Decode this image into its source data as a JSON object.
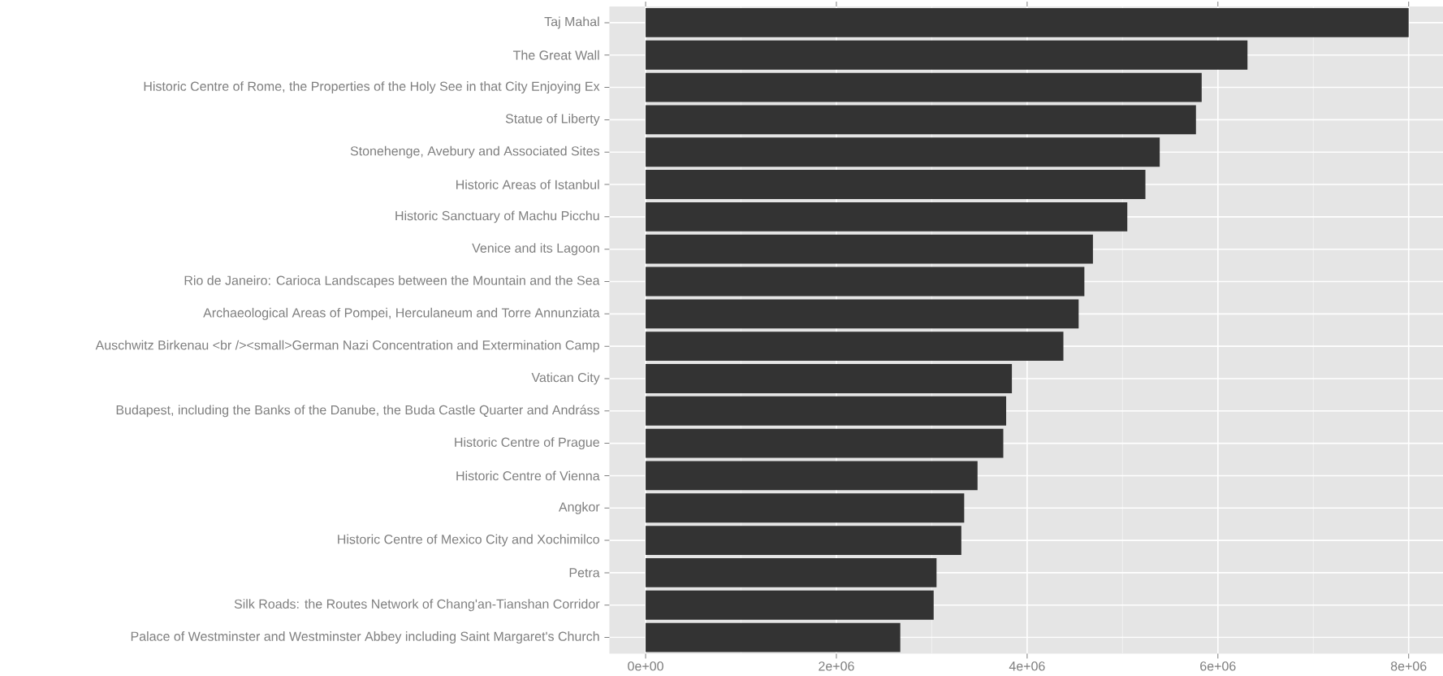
{
  "chart_data": {
    "type": "bar",
    "orientation": "horizontal",
    "categories": [
      "Taj Mahal",
      "The Great Wall",
      "Historic Centre of Rome, the Properties of the Holy See in that City Enjoying Ex",
      "Statue of Liberty",
      "Stonehenge, Avebury and Associated Sites",
      "Historic Areas of Istanbul",
      "Historic Sanctuary of Machu Picchu",
      "Venice and its Lagoon",
      "Rio de Janeiro: Carioca Landscapes between the Mountain and the Sea",
      "Archaeological Areas of Pompei, Herculaneum and Torre Annunziata",
      "Auschwitz Birkenau <br /><small>German Nazi Concentration and Extermination Camp",
      "Vatican City",
      "Budapest, including the Banks of the Danube, the Buda Castle Quarter and Andráss",
      "Historic Centre of Prague",
      "Historic Centre of Vienna",
      "Angkor",
      "Historic Centre of Mexico City and Xochimilco",
      "Petra",
      "Silk Roads: the Routes Network of Chang'an-Tianshan Corridor",
      "Palace of Westminster and Westminster Abbey including Saint Margaret's Church"
    ],
    "values": [
      8000000,
      6310000,
      5830000,
      5770000,
      5390000,
      5240000,
      5050000,
      4690000,
      4600000,
      4540000,
      4380000,
      3840000,
      3780000,
      3750000,
      3480000,
      3340000,
      3310000,
      3050000,
      3020000,
      2670000
    ],
    "color": "#333333",
    "xlim": [
      -380000,
      8360000
    ],
    "xticks": [
      {
        "value": 0,
        "label": "0e+00"
      },
      {
        "value": 2000000,
        "label": "2e+06"
      },
      {
        "value": 4000000,
        "label": "4e+06"
      },
      {
        "value": 6000000,
        "label": "6e+06"
      },
      {
        "value": 8000000,
        "label": "8e+06"
      }
    ],
    "grid": true
  }
}
